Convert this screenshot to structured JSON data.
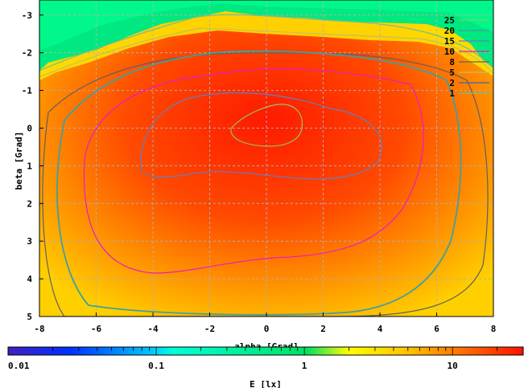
{
  "chart_data": {
    "type": "heatmap",
    "title": "",
    "xlabel": "alpha [Grad]",
    "ylabel": "beta [Grad]",
    "xlim": [
      -8,
      8
    ],
    "ylim": [
      -3.4,
      5
    ],
    "y_axis_inverted": true,
    "grid": true,
    "x_ticks": [
      "-8",
      "-6",
      "-4",
      "-2",
      "0",
      "2",
      "4",
      "6",
      "8"
    ],
    "y_ticks": [
      "-3",
      "-2",
      "-1",
      "0",
      "1",
      "2",
      "3",
      "4",
      "5"
    ],
    "contour_levels": [
      {
        "label": "25",
        "color": "#90c860"
      },
      {
        "label": "20",
        "color": "#40a0a0"
      },
      {
        "label": "15",
        "color": "#6080c0"
      },
      {
        "label": "10",
        "color": "#e020c0"
      },
      {
        "label": "8",
        "color": "#606060"
      },
      {
        "label": "5",
        "color": "#c0c060"
      },
      {
        "label": "2",
        "color": "#4060c0"
      },
      {
        "label": "1",
        "color": "#70c090"
      }
    ],
    "colorbar": {
      "label": "E [lx]",
      "scale": "log",
      "range": [
        0.01,
        30
      ],
      "ticks": [
        "0.01",
        "0.1",
        "1",
        "10"
      ]
    }
  }
}
